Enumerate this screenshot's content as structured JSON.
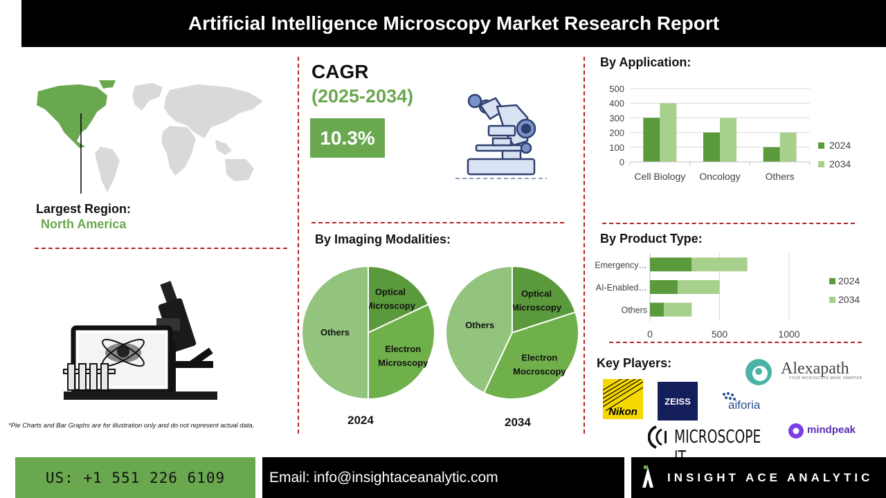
{
  "header": {
    "title": "Artificial Intelligence Microscopy Market Research Report"
  },
  "region": {
    "label": "Largest Region:",
    "value": "North America"
  },
  "cagr": {
    "title": "CAGR",
    "period": "(2025-2034)",
    "value": "10.3%"
  },
  "application": {
    "title": "By Application:",
    "chart_data": {
      "type": "bar",
      "categories": [
        "Cell Biology",
        "Oncology",
        "Others"
      ],
      "series": [
        {
          "name": "2024",
          "values": [
            300,
            200,
            100
          ],
          "color": "#5a9a3c"
        },
        {
          "name": "2034",
          "values": [
            400,
            300,
            200
          ],
          "color": "#a8d08d"
        }
      ],
      "yticks": [
        0,
        100,
        200,
        300,
        400,
        500
      ],
      "ylim": [
        0,
        500
      ],
      "legend": "right"
    }
  },
  "modalities": {
    "title": "By Imaging Modalities:",
    "charts": [
      {
        "type": "pie",
        "year": "2024",
        "slices": [
          {
            "label": "Optical Microscopy",
            "value": 18,
            "color": "#5a9a3c"
          },
          {
            "label": "Electron Microscopy",
            "value": 32,
            "color": "#6fb04a"
          },
          {
            "label": "Others",
            "value": 50,
            "color": "#93c47d"
          }
        ]
      },
      {
        "type": "pie",
        "year": "2034",
        "slices": [
          {
            "label": "Optical Microscopy",
            "value": 20,
            "color": "#5a9a3c"
          },
          {
            "label": "Electron Mocroscopy",
            "value": 37,
            "color": "#6fb04a"
          },
          {
            "label": "Others",
            "value": 43,
            "color": "#93c47d"
          }
        ]
      }
    ]
  },
  "product": {
    "title": "By Product Type:",
    "chart_data": {
      "type": "bar",
      "orientation": "horizontal",
      "stacked": true,
      "categories": [
        "Emergency…",
        "AI-Enabled…",
        "Others"
      ],
      "series": [
        {
          "name": "2024",
          "values": [
            300,
            200,
            100
          ],
          "color": "#5a9a3c"
        },
        {
          "name": "2034",
          "values": [
            400,
            300,
            200
          ],
          "color": "#a8d08d"
        }
      ],
      "xticks": [
        0,
        500,
        1000
      ],
      "xlim": [
        0,
        1000
      ],
      "legend": "right"
    }
  },
  "key_players": {
    "title": "Key Players:",
    "logos": {
      "nikon": "Nikon",
      "zeiss": "ZEISS",
      "aiforia": "aiforia",
      "alexapath": "Alexapath",
      "alexapath_tag": "YOUR MICROSCOPE MADE SMARTER",
      "microscopeit": "MICROSCOPE IT",
      "mindpeak": "mindpeak"
    }
  },
  "disclaimer": "*Pie Charts and Bar Graphs are for illustration only and do not represent actual data.",
  "footer": {
    "phone": "US: +1 551 226 6109",
    "email": "Email: info@insightaceanalytic.com",
    "brand": "INSIGHT ACE ANALYTIC"
  }
}
